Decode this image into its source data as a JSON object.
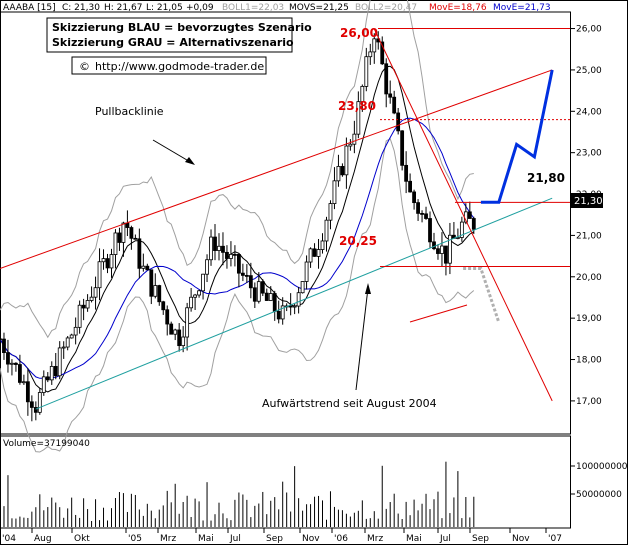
{
  "header": {
    "symbol": "AAABA [15]",
    "c_label": "C: 21,30",
    "h_label": "H: 21,67",
    "l_label": "L: 21,05",
    "chg_label": "+0,09",
    "boll1": "BOLL1=22,03",
    "movs": "MOVS=21,25",
    "boll2": "BOLL2=20,47",
    "move1": "MovE=18,76",
    "move2": "MovE=21,73"
  },
  "legend_box": {
    "line1": "Skizzierung BLAU = bevorzugtes Szenario",
    "line2": "Skizzierung GRAU = Alternativszenario"
  },
  "url": "http://www.godmode-trader.de",
  "copyright_glyph": "©",
  "annotations": {
    "pullback": "Pullbacklinie",
    "uptrend": "Aufwärtstrend seit August 2004"
  },
  "levels": {
    "l26": "26,00",
    "l2380": "23,80",
    "l2180": "21,80",
    "l2025": "20,25"
  },
  "last_price_label": "21,30",
  "volume_label": "Volume=37199040",
  "colors": {
    "candle": "#000000",
    "bollinger": "#a0a0a0",
    "movs": "#000000",
    "move_long": "#0000cc",
    "trend_up": "#20a0a0",
    "channel": "#e00000",
    "level": "#e00000",
    "scenario_blue": "#0030e0",
    "scenario_gray": "#b0b0b0"
  },
  "chart_data": {
    "type": "candlestick",
    "y_axis": {
      "ticks": [
        "17,00",
        "18,00",
        "19,00",
        "20,00",
        "21,00",
        "22,00",
        "23,00",
        "24,00",
        "25,00",
        "26,00"
      ],
      "ylim": [
        16.2,
        26.4
      ]
    },
    "x_axis": {
      "ticks": [
        "'04",
        "Aug",
        "Okt",
        "'05",
        "Mrz",
        "Mai",
        "Jul",
        "Sep",
        "Nov",
        "'06",
        "Mrz",
        "Mai",
        "Jul",
        "Sep",
        "Nov",
        "'07"
      ]
    },
    "volume_axis": {
      "ticks": [
        "100000000",
        "50000000"
      ]
    },
    "price_close_path": [
      {
        "date": "2004-06",
        "close": 18.5
      },
      {
        "date": "2004-08",
        "close": 16.9
      },
      {
        "date": "2004-10",
        "close": 18.6
      },
      {
        "date": "2005-01",
        "close": 21.4
      },
      {
        "date": "2005-02",
        "close": 20.2
      },
      {
        "date": "2005-04",
        "close": 18.5
      },
      {
        "date": "2005-06",
        "close": 20.9
      },
      {
        "date": "2005-08",
        "close": 19.8
      },
      {
        "date": "2005-10",
        "close": 19.0
      },
      {
        "date": "2005-12",
        "close": 21.0
      },
      {
        "date": "2006-02",
        "close": 23.8
      },
      {
        "date": "2006-03",
        "close": 26.0
      },
      {
        "date": "2006-05",
        "close": 22.0
      },
      {
        "date": "2006-07",
        "close": 20.5
      },
      {
        "date": "2006-08",
        "close": 21.3
      }
    ],
    "levels": [
      26.0,
      23.8,
      21.8,
      20.25
    ],
    "trend_uptrend": [
      {
        "date": "2004-08",
        "value": 16.8
      },
      {
        "date": "2007-01",
        "value": 21.9
      }
    ],
    "channel_top": [
      {
        "date": "2004-06",
        "value": 20.2
      },
      {
        "date": "2007-01",
        "value": 25.0
      }
    ],
    "downtrend": [
      {
        "date": "2006-03",
        "value": 26.0
      },
      {
        "date": "2007-01",
        "value": 17.0
      }
    ],
    "scenario_blue": [
      {
        "date": "2006-09",
        "value": 21.8
      },
      {
        "date": "2006-10",
        "value": 21.8
      },
      {
        "date": "2006-11",
        "value": 23.2
      },
      {
        "date": "2006-12",
        "value": 22.9
      },
      {
        "date": "2007-01",
        "value": 25.0
      }
    ],
    "scenario_gray": [
      {
        "date": "2006-08",
        "value": 20.2
      },
      {
        "date": "2006-09",
        "value": 20.2
      },
      {
        "date": "2006-10",
        "value": 18.9
      }
    ]
  }
}
